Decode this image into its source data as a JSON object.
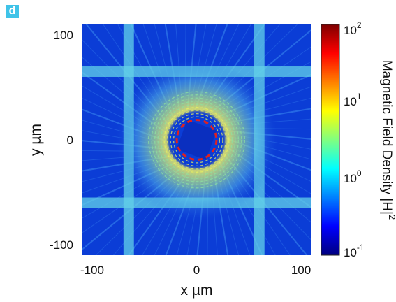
{
  "panel_label": "d",
  "colors": {
    "background": "#0b3dd6",
    "ring": "#c7e86b",
    "beam": "#63d2e8",
    "dashed_circle": "#e02020",
    "core": "#0a2fbf"
  },
  "chart_data": {
    "type": "heatmap",
    "title": "",
    "xlabel": "x  µm",
    "ylabel": "y  µm",
    "xlim": [
      -110,
      110
    ],
    "ylim": [
      -110,
      110
    ],
    "x_ticks": [
      -100,
      0,
      100
    ],
    "y_ticks": [
      -100,
      0,
      100
    ],
    "x_tick_labels": [
      "-100",
      "0",
      "100"
    ],
    "y_tick_labels": [
      "100",
      "0",
      "-100"
    ],
    "colorbar": {
      "label": "Magnetic Field Density  |H|",
      "label_superscript": "2",
      "scale": "log",
      "range": [
        0.1,
        100
      ],
      "ticks": [
        {
          "base": "10",
          "exp": "2",
          "value": 100
        },
        {
          "base": "10",
          "exp": "1",
          "value": 10
        },
        {
          "base": "10",
          "exp": "0",
          "value": 1
        },
        {
          "base": "10",
          "exp": "-1",
          "value": 0.1
        }
      ],
      "colormap": [
        "#00007f",
        "#0000ff",
        "#0080ff",
        "#00ffff",
        "#80ff80",
        "#ffff00",
        "#ff8000",
        "#ff0000",
        "#7f0000"
      ]
    },
    "dashed_circle_radius_um": 19,
    "field_pattern": {
      "beams": [
        {
          "orientation": "vertical",
          "x": -65
        },
        {
          "orientation": "vertical",
          "x": 60
        },
        {
          "orientation": "horizontal",
          "y": 65
        },
        {
          "orientation": "horizontal",
          "y": -60
        }
      ],
      "ring_radius_um": [
        22,
        48
      ],
      "core_value": 0.3,
      "background_value": 0.3,
      "ring_value": 3
    }
  }
}
